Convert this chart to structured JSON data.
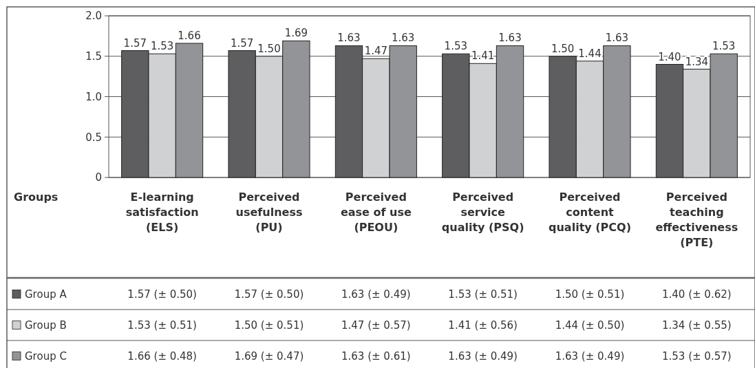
{
  "chart_data": {
    "type": "bar",
    "legend_title": "Groups",
    "legend": "bottom",
    "grid": "y",
    "categories": [
      "E-learning satisfaction (ELS)",
      "Perceived usefulness (PU)",
      "Perceived ease of use (PEOU)",
      "Perceived service quality (PSQ)",
      "Perceived content quality (PCQ)",
      "Perceived teaching effectiveness (PTE)"
    ],
    "ylim": [
      0,
      2.0
    ],
    "yticks": [
      0,
      {
        "value": 0.5,
        "label": "0.5"
      },
      {
        "value": 1,
        "label": "1.0"
      },
      {
        "value": 1.5,
        "label": "1.5"
      },
      {
        "value": 2,
        "label": "2.0"
      }
    ],
    "series": [
      {
        "name": "Group A",
        "color": "#5e5e60",
        "values": [
          1.57,
          1.57,
          1.63,
          1.53,
          1.5,
          1.4
        ],
        "value_labels": [
          "1.57",
          "1.57",
          "1.63",
          "1.53",
          "1.50",
          "1.40"
        ]
      },
      {
        "name": "Group B",
        "color": "#d0d1d3",
        "values": [
          1.53,
          1.5,
          1.47,
          1.41,
          1.44,
          1.34
        ],
        "value_labels": [
          "1.53",
          "1.50",
          "1.47",
          "1.41",
          "1.44",
          "1.34"
        ]
      },
      {
        "name": "Group C",
        "color": "#939497",
        "values": [
          1.66,
          1.69,
          1.63,
          1.63,
          1.63,
          1.53
        ],
        "value_labels": [
          "1.66",
          "1.69",
          "1.63",
          "1.63",
          "1.63",
          "1.53"
        ]
      }
    ],
    "annotations": [
      "1.57 (± 0.50)",
      "1.57 (± 0.50)",
      "1.63 (± 0.49)",
      "1.53 (± 0.51)",
      "1.50 (± 0.51)",
      "1.40 (± 0.62)",
      "1.53 (± 0.51)",
      "1.50 (± 0.51)",
      "1.47 (± 0.57)",
      "1.41 (± 0.56)",
      "1.44 (± 0.50)",
      "1.34 (± 0.55)",
      "1.66 (± 0.48)",
      "1.69 (± 0.47)",
      "1.63 (± 0.61)",
      "1.63 (± 0.49)",
      "1.63 (± 0.49)",
      "1.53 (± 0.57)"
    ]
  }
}
